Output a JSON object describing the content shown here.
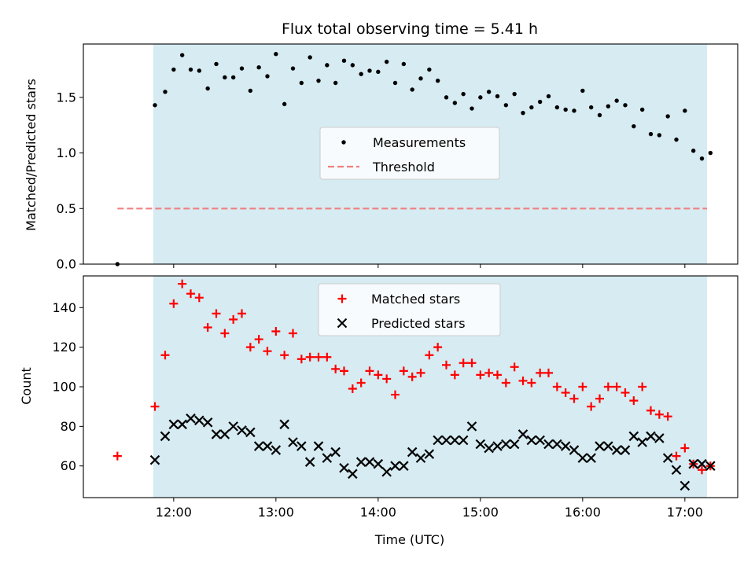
{
  "chart_data": [
    {
      "type": "scatter",
      "panel": "top",
      "title": "Flux total observing time = 5.41 h",
      "xlabel": "",
      "ylabel": "Matched/Predicted stars",
      "xlim": [
        "11:07",
        "17:31"
      ],
      "ylim": [
        0,
        1.98
      ],
      "yticks": [
        "0.0",
        "0.5",
        "1.0",
        "1.5"
      ],
      "grid": false,
      "legend_position": "center",
      "observing_window": [
        "11:48",
        "17:13"
      ],
      "series": [
        {
          "name": "Measurements",
          "marker": "dot",
          "color": "#000000",
          "x": [
            "11:27",
            "11:49",
            "11:55",
            "12:00",
            "12:05",
            "12:10",
            "12:15",
            "12:20",
            "12:25",
            "12:30",
            "12:35",
            "12:40",
            "12:45",
            "12:50",
            "12:55",
            "13:00",
            "13:05",
            "13:10",
            "13:15",
            "13:20",
            "13:25",
            "13:30",
            "13:35",
            "13:40",
            "13:45",
            "13:50",
            "13:55",
            "14:00",
            "14:05",
            "14:10",
            "14:15",
            "14:20",
            "14:25",
            "14:30",
            "14:35",
            "14:40",
            "14:45",
            "14:50",
            "14:55",
            "15:00",
            "15:05",
            "15:10",
            "15:15",
            "15:20",
            "15:25",
            "15:30",
            "15:35",
            "15:40",
            "15:45",
            "15:50",
            "15:55",
            "16:00",
            "16:05",
            "16:10",
            "16:15",
            "16:20",
            "16:25",
            "16:30",
            "16:35",
            "16:40",
            "16:45",
            "16:50",
            "16:55",
            "17:00",
            "17:05",
            "17:10",
            "17:15"
          ],
          "y": [
            0.0,
            1.43,
            1.55,
            1.75,
            1.88,
            1.75,
            1.74,
            1.58,
            1.8,
            1.68,
            1.68,
            1.76,
            1.56,
            1.77,
            1.69,
            1.89,
            1.44,
            1.76,
            1.63,
            1.86,
            1.65,
            1.79,
            1.63,
            1.83,
            1.79,
            1.71,
            1.74,
            1.73,
            1.82,
            1.63,
            1.8,
            1.57,
            1.67,
            1.75,
            1.65,
            1.5,
            1.45,
            1.53,
            1.4,
            1.5,
            1.55,
            1.51,
            1.43,
            1.53,
            1.36,
            1.41,
            1.46,
            1.51,
            1.41,
            1.39,
            1.38,
            1.56,
            1.41,
            1.34,
            1.42,
            1.47,
            1.43,
            1.24,
            1.39,
            1.17,
            1.16,
            1.33,
            1.12,
            1.38,
            1.02,
            0.95,
            1.0
          ]
        },
        {
          "name": "Threshold",
          "marker": "dashed-line",
          "color": "#f08080",
          "x": [
            "11:27",
            "17:13"
          ],
          "y": [
            0.5,
            0.5
          ]
        }
      ]
    },
    {
      "type": "scatter",
      "panel": "bottom",
      "title": "",
      "xlabel": "Time (UTC)",
      "ylabel": "Count",
      "xlim": [
        "11:07",
        "17:31"
      ],
      "ylim": [
        44,
        156
      ],
      "yticks": [
        "60",
        "80",
        "100",
        "120",
        "140"
      ],
      "xticks": [
        "12:00",
        "13:00",
        "14:00",
        "15:00",
        "16:00",
        "17:00"
      ],
      "grid": false,
      "legend_position": "upper center",
      "observing_window": [
        "11:48",
        "17:13"
      ],
      "series": [
        {
          "name": "Matched stars",
          "marker": "plus",
          "color": "#ff0000",
          "x": [
            "11:27",
            "11:49",
            "11:55",
            "12:00",
            "12:05",
            "12:10",
            "12:15",
            "12:20",
            "12:25",
            "12:30",
            "12:35",
            "12:40",
            "12:45",
            "12:50",
            "12:55",
            "13:00",
            "13:05",
            "13:10",
            "13:15",
            "13:20",
            "13:25",
            "13:30",
            "13:35",
            "13:40",
            "13:45",
            "13:50",
            "13:55",
            "14:00",
            "14:05",
            "14:10",
            "14:15",
            "14:20",
            "14:25",
            "14:30",
            "14:35",
            "14:40",
            "14:45",
            "14:50",
            "14:55",
            "15:00",
            "15:05",
            "15:10",
            "15:15",
            "15:20",
            "15:25",
            "15:30",
            "15:35",
            "15:40",
            "15:45",
            "15:50",
            "15:55",
            "16:00",
            "16:05",
            "16:10",
            "16:15",
            "16:20",
            "16:25",
            "16:30",
            "16:35",
            "16:40",
            "16:45",
            "16:50",
            "16:55",
            "17:00",
            "17:05",
            "17:10",
            "17:15"
          ],
          "y": [
            65,
            90,
            116,
            142,
            152,
            147,
            145,
            130,
            137,
            127,
            134,
            137,
            120,
            124,
            118,
            128,
            116,
            127,
            114,
            115,
            115,
            115,
            109,
            108,
            99,
            102,
            108,
            106,
            104,
            96,
            108,
            105,
            107,
            116,
            120,
            111,
            106,
            112,
            112,
            106,
            107,
            106,
            102,
            110,
            103,
            102,
            107,
            107,
            100,
            97,
            94,
            100,
            90,
            94,
            100,
            100,
            97,
            93,
            100,
            88,
            86,
            85,
            65,
            69,
            61,
            58,
            60
          ]
        },
        {
          "name": "Predicted stars",
          "marker": "x",
          "color": "#000000",
          "x": [
            "11:49",
            "11:55",
            "12:00",
            "12:05",
            "12:10",
            "12:15",
            "12:20",
            "12:25",
            "12:30",
            "12:35",
            "12:40",
            "12:45",
            "12:50",
            "12:55",
            "13:00",
            "13:05",
            "13:10",
            "13:15",
            "13:20",
            "13:25",
            "13:30",
            "13:35",
            "13:40",
            "13:45",
            "13:50",
            "13:55",
            "14:00",
            "14:05",
            "14:10",
            "14:15",
            "14:20",
            "14:25",
            "14:30",
            "14:35",
            "14:40",
            "14:45",
            "14:50",
            "14:55",
            "15:00",
            "15:05",
            "15:10",
            "15:15",
            "15:20",
            "15:25",
            "15:30",
            "15:35",
            "15:40",
            "15:45",
            "15:50",
            "15:55",
            "16:00",
            "16:05",
            "16:10",
            "16:15",
            "16:20",
            "16:25",
            "16:30",
            "16:35",
            "16:40",
            "16:45",
            "16:50",
            "16:55",
            "17:00",
            "17:05",
            "17:10",
            "17:15"
          ],
          "y": [
            63,
            75,
            81,
            81,
            84,
            83,
            82,
            76,
            76,
            80,
            78,
            77,
            70,
            70,
            68,
            81,
            72,
            70,
            62,
            70,
            64,
            67,
            59,
            56,
            62,
            62,
            61,
            57,
            60,
            60,
            67,
            64,
            66,
            73,
            73,
            73,
            73,
            80,
            71,
            69,
            70,
            71,
            71,
            76,
            73,
            73,
            71,
            71,
            70,
            68,
            64,
            64,
            70,
            70,
            68,
            68,
            75,
            72,
            75,
            74,
            64,
            58,
            50,
            61,
            61,
            60
          ]
        }
      ]
    }
  ]
}
